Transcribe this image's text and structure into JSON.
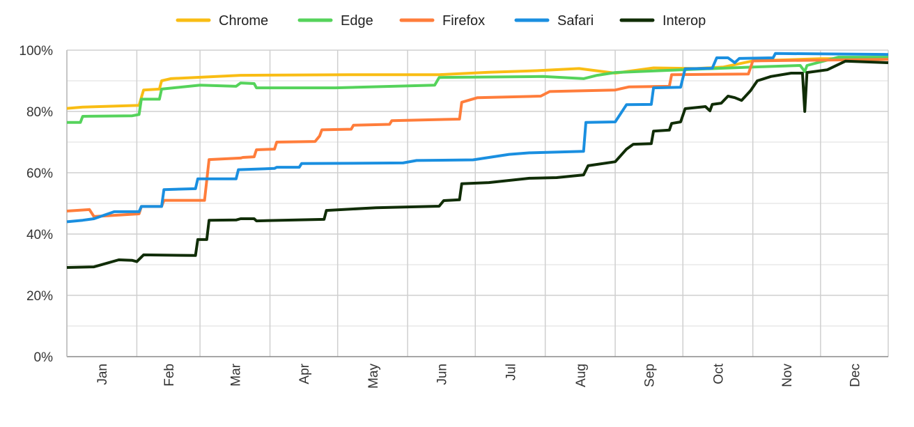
{
  "chart_data": {
    "type": "line",
    "title": "",
    "xlabel": "",
    "ylabel": "",
    "ylim": [
      0,
      100
    ],
    "y_ticks": [
      "0%",
      "20%",
      "40%",
      "60%",
      "80%",
      "100%"
    ],
    "y_tick_values": [
      0,
      20,
      40,
      60,
      80,
      100
    ],
    "x_ticks": [
      "Jan",
      "Feb",
      "Mar",
      "Apr",
      "May",
      "Jun",
      "Jul",
      "Aug",
      "Sep",
      "Oct",
      "Nov",
      "Dec"
    ],
    "x_range": [
      "01-01",
      "12-31"
    ],
    "grid": true,
    "legend_position": "top",
    "series": [
      {
        "name": "Chrome",
        "color": "#f9bd14",
        "points": [
          [
            "01-01",
            81.0
          ],
          [
            "01-08",
            81.4
          ],
          [
            "02-02",
            82
          ],
          [
            "02-04",
            87
          ],
          [
            "02-11",
            87.3
          ],
          [
            "02-12",
            90
          ],
          [
            "02-16",
            90.7
          ],
          [
            "03-02",
            91.2
          ],
          [
            "03-19",
            91.8
          ],
          [
            "05-06",
            92
          ],
          [
            "06-15",
            92
          ],
          [
            "07-07",
            92.8
          ],
          [
            "07-28",
            93.3
          ],
          [
            "08-16",
            94
          ],
          [
            "09-01",
            92.5
          ],
          [
            "09-18",
            94.2
          ],
          [
            "10-07",
            94
          ],
          [
            "10-19",
            94.5
          ],
          [
            "11-01",
            96.5
          ],
          [
            "12-01",
            97.2
          ],
          [
            "12-31",
            97.3
          ]
        ]
      },
      {
        "name": "Edge",
        "color": "#55d35b",
        "points": [
          [
            "01-01",
            76.4
          ],
          [
            "01-07",
            76.4
          ],
          [
            "01-08",
            78.4
          ],
          [
            "01-30",
            78.6
          ],
          [
            "02-02",
            79
          ],
          [
            "02-03",
            84
          ],
          [
            "02-11",
            84
          ],
          [
            "02-12",
            87.3
          ],
          [
            "03-01",
            88.6
          ],
          [
            "03-17",
            88.2
          ],
          [
            "03-19",
            89.3
          ],
          [
            "03-25",
            89.1
          ],
          [
            "03-26",
            87.7
          ],
          [
            "04-30",
            87.7
          ],
          [
            "06-13",
            88.6
          ],
          [
            "06-15",
            91.1
          ],
          [
            "07-31",
            91.4
          ],
          [
            "08-18",
            90.7
          ],
          [
            "08-24",
            91.8
          ],
          [
            "09-01",
            92.7
          ],
          [
            "09-30",
            93.6
          ],
          [
            "11-01",
            94.5
          ],
          [
            "11-22",
            95
          ],
          [
            "11-24",
            93
          ],
          [
            "11-25",
            95
          ],
          [
            "12-09",
            97.7
          ],
          [
            "12-31",
            97.7
          ]
        ]
      },
      {
        "name": "Firefox",
        "color": "#ff7d3b",
        "points": [
          [
            "01-01",
            47.5
          ],
          [
            "01-11",
            48
          ],
          [
            "01-13",
            45.7
          ],
          [
            "02-02",
            46.6
          ],
          [
            "02-03",
            49
          ],
          [
            "02-12",
            49
          ],
          [
            "02-13",
            51
          ],
          [
            "03-03",
            51
          ],
          [
            "03-05",
            64.3
          ],
          [
            "03-19",
            64.8
          ],
          [
            "03-20",
            65
          ],
          [
            "03-25",
            65.2
          ],
          [
            "03-26",
            67.5
          ],
          [
            "04-03",
            67.7
          ],
          [
            "04-04",
            70
          ],
          [
            "04-21",
            70.2
          ],
          [
            "04-23",
            72
          ],
          [
            "04-24",
            74
          ],
          [
            "05-07",
            74.2
          ],
          [
            "05-08",
            75.5
          ],
          [
            "05-24",
            75.8
          ],
          [
            "05-25",
            77
          ],
          [
            "06-24",
            77.5
          ],
          [
            "06-25",
            83
          ],
          [
            "07-02",
            84.5
          ],
          [
            "07-30",
            85
          ],
          [
            "08-03",
            86.5
          ],
          [
            "09-01",
            87
          ],
          [
            "09-07",
            88
          ],
          [
            "09-25",
            88.2
          ],
          [
            "09-26",
            92
          ],
          [
            "10-30",
            92.2
          ],
          [
            "11-01",
            96.5
          ],
          [
            "12-31",
            97
          ]
        ]
      },
      {
        "name": "Safari",
        "color": "#1a8fe0",
        "points": [
          [
            "01-01",
            44
          ],
          [
            "01-08",
            44.5
          ],
          [
            "01-13",
            45
          ],
          [
            "01-22",
            47.3
          ],
          [
            "02-02",
            47.3
          ],
          [
            "02-03",
            49
          ],
          [
            "02-12",
            49
          ],
          [
            "02-13",
            54.5
          ],
          [
            "02-27",
            54.8
          ],
          [
            "02-28",
            58
          ],
          [
            "03-17",
            58
          ],
          [
            "03-18",
            61
          ],
          [
            "04-03",
            61.4
          ],
          [
            "04-04",
            61.8
          ],
          [
            "04-14",
            61.8
          ],
          [
            "04-15",
            63
          ],
          [
            "05-30",
            63.2
          ],
          [
            "06-05",
            64
          ],
          [
            "06-30",
            64.2
          ],
          [
            "07-16",
            66
          ],
          [
            "07-25",
            66.5
          ],
          [
            "08-18",
            67
          ],
          [
            "08-19",
            76.4
          ],
          [
            "09-01",
            76.6
          ],
          [
            "09-06",
            82.2
          ],
          [
            "09-17",
            82.3
          ],
          [
            "09-18",
            87.7
          ],
          [
            "09-30",
            87.9
          ],
          [
            "10-02",
            93.9
          ],
          [
            "10-14",
            94.1
          ],
          [
            "10-16",
            97.5
          ],
          [
            "10-21",
            97.5
          ],
          [
            "10-24",
            95.9
          ],
          [
            "10-26",
            97.3
          ],
          [
            "11-10",
            97.5
          ],
          [
            "11-11",
            98.9
          ],
          [
            "12-31",
            98.6
          ]
        ]
      },
      {
        "name": "Interop",
        "color": "#102d06",
        "points": [
          [
            "01-01",
            29.1
          ],
          [
            "01-13",
            29.3
          ],
          [
            "01-24",
            31.6
          ],
          [
            "01-30",
            31.4
          ],
          [
            "02-01",
            31
          ],
          [
            "02-04",
            33.2
          ],
          [
            "02-27",
            33.0
          ],
          [
            "02-28",
            38.2
          ],
          [
            "03-04",
            38.2
          ],
          [
            "03-05",
            44.5
          ],
          [
            "03-17",
            44.6
          ],
          [
            "03-19",
            45
          ],
          [
            "03-25",
            45
          ],
          [
            "03-26",
            44.3
          ],
          [
            "04-25",
            44.8
          ],
          [
            "04-26",
            47.7
          ],
          [
            "05-18",
            48.6
          ],
          [
            "06-15",
            49.1
          ],
          [
            "06-17",
            50.9
          ],
          [
            "06-24",
            51.2
          ],
          [
            "06-25",
            56.4
          ],
          [
            "07-07",
            56.8
          ],
          [
            "07-25",
            58.2
          ],
          [
            "08-06",
            58.4
          ],
          [
            "08-18",
            59.3
          ],
          [
            "08-20",
            62.3
          ],
          [
            "09-01",
            63.6
          ],
          [
            "09-06",
            67.7
          ],
          [
            "09-09",
            69.3
          ],
          [
            "09-17",
            69.5
          ],
          [
            "09-18",
            73.6
          ],
          [
            "09-25",
            73.9
          ],
          [
            "09-26",
            76.1
          ],
          [
            "09-30",
            76.6
          ],
          [
            "10-02",
            80.9
          ],
          [
            "10-11",
            81.6
          ],
          [
            "10-13",
            80.2
          ],
          [
            "10-14",
            82.3
          ],
          [
            "10-18",
            82.7
          ],
          [
            "10-21",
            85
          ],
          [
            "10-24",
            84.5
          ],
          [
            "10-27",
            83.6
          ],
          [
            "10-31",
            86.8
          ],
          [
            "11-03",
            90
          ],
          [
            "11-09",
            91.4
          ],
          [
            "11-18",
            92.5
          ],
          [
            "11-23",
            92.5
          ],
          [
            "11-24",
            80
          ],
          [
            "11-25",
            92.7
          ],
          [
            "12-04",
            93.6
          ],
          [
            "12-12",
            96.4
          ],
          [
            "12-31",
            95.9
          ]
        ]
      }
    ]
  }
}
